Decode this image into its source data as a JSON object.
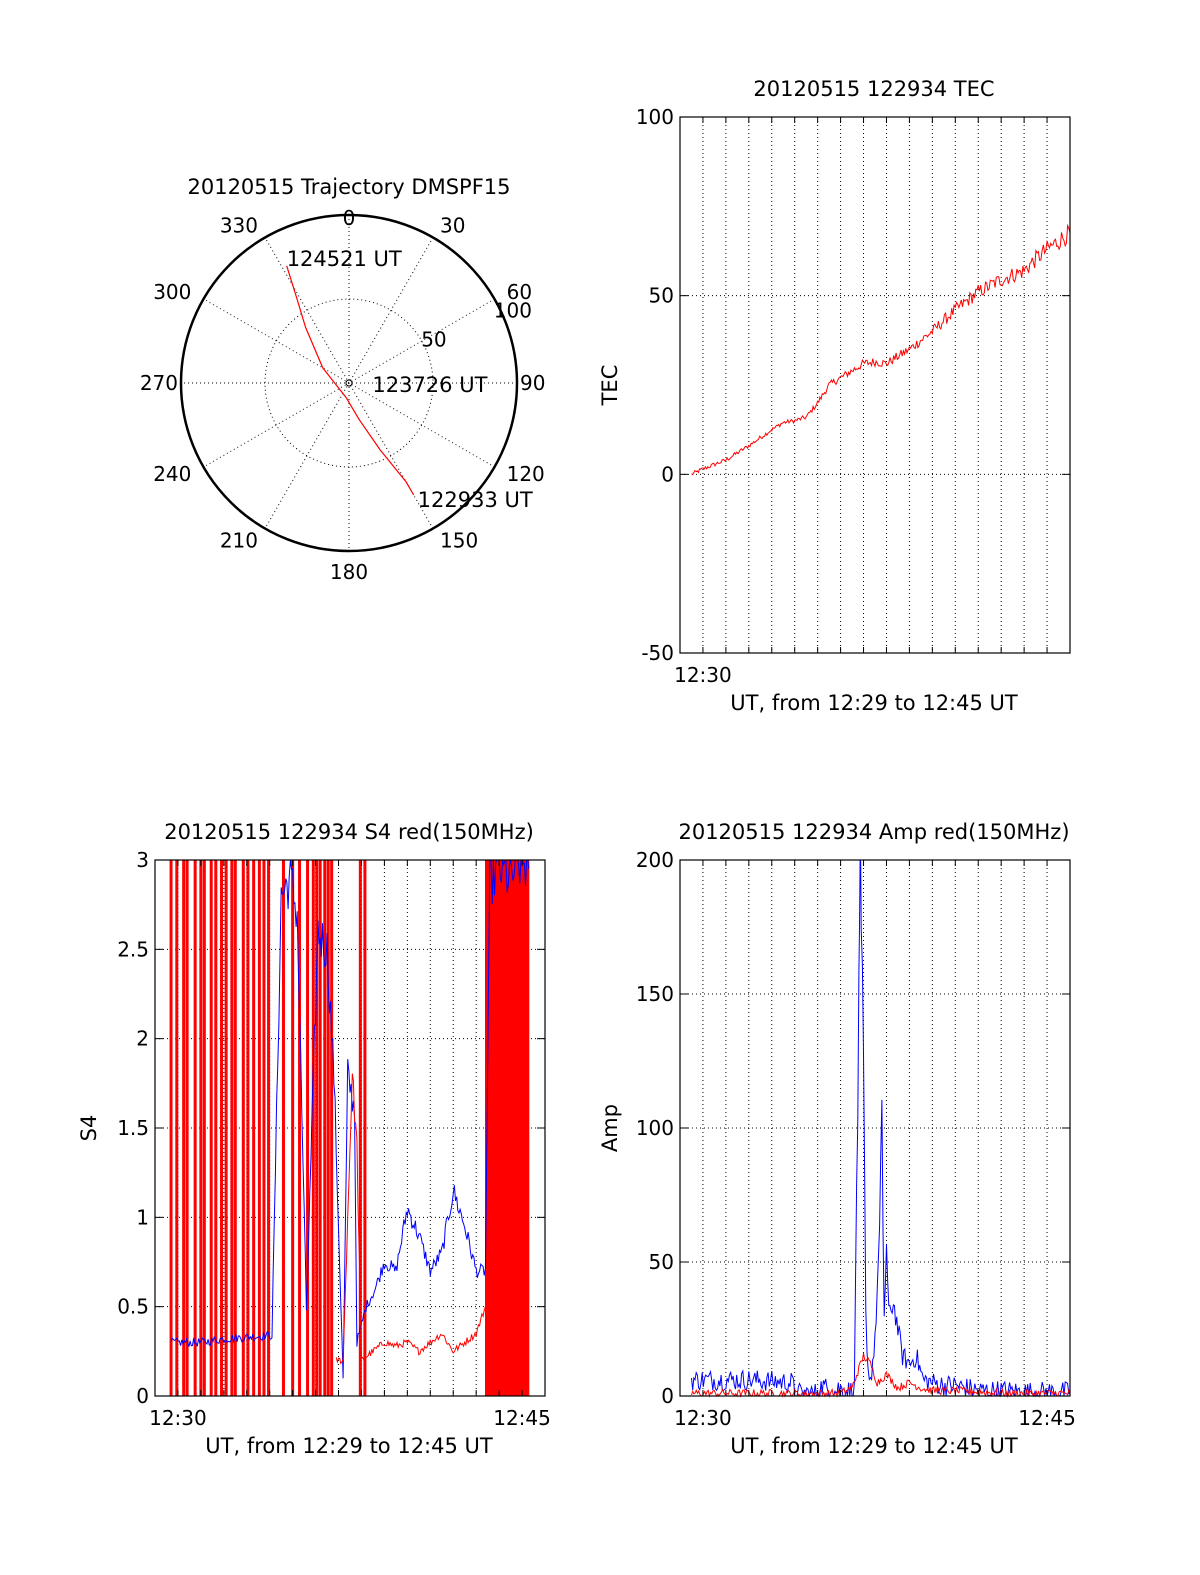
{
  "colors": {
    "red": "#ff0000",
    "blue": "#0000ff",
    "axis": "#000000"
  },
  "chart_data": [
    {
      "type": "polar",
      "title": "20120515 Trajectory DMSPF15",
      "angle_labels": [
        {
          "deg": 0,
          "label": "0"
        },
        {
          "deg": 30,
          "label": "30"
        },
        {
          "deg": 60,
          "label": "60"
        },
        {
          "deg": 90,
          "label": "90"
        },
        {
          "deg": 120,
          "label": "120"
        },
        {
          "deg": 150,
          "label": "150"
        },
        {
          "deg": 180,
          "label": "180"
        },
        {
          "deg": 210,
          "label": "210"
        },
        {
          "deg": 240,
          "label": "240"
        },
        {
          "deg": 270,
          "label": "270"
        },
        {
          "deg": 300,
          "label": "300"
        },
        {
          "deg": 330,
          "label": "330"
        }
      ],
      "radial_labels": [
        {
          "r": 50,
          "label": "50"
        },
        {
          "r": 100,
          "label": "100"
        }
      ],
      "rmax": 100,
      "trajectory": [
        {
          "az": 332,
          "r": 79
        },
        {
          "az": 329,
          "r": 62
        },
        {
          "az": 322,
          "r": 42
        },
        {
          "az": 300,
          "r": 18
        },
        {
          "az": 190,
          "r": 9
        },
        {
          "az": 165,
          "r": 22
        },
        {
          "az": 155,
          "r": 44
        },
        {
          "az": 150,
          "r": 68
        },
        {
          "az": 150,
          "r": 77
        }
      ],
      "annotations": [
        {
          "text": "124521 UT",
          "at_index": 0
        },
        {
          "text": "123726 UT",
          "at_index": 4
        },
        {
          "text": "122933 UT",
          "at_index": 8
        }
      ]
    },
    {
      "type": "line",
      "title": "20120515 122934 TEC",
      "ylabel": "TEC",
      "xlabel": "UT, from 12:29 to 12:45 UT",
      "xlim": [
        0,
        17
      ],
      "ylim": [
        -50,
        100
      ],
      "yticks": [
        {
          "value": 100,
          "label": "100"
        },
        {
          "value": 50,
          "label": "50"
        },
        {
          "value": 0,
          "label": "0"
        },
        {
          "value": -50,
          "label": "-50"
        }
      ],
      "xticks": [
        {
          "value": 1.0,
          "label": "12:30"
        }
      ],
      "grid_x": [
        1.0,
        2.0,
        3.0,
        4.0,
        5.0,
        6.0,
        7.0,
        8.0,
        9.0,
        10.0,
        11.0,
        12.0,
        13.0,
        14.0,
        15.0,
        16.0
      ],
      "grid_y": [
        50,
        0
      ],
      "series": [
        {
          "color": "red",
          "noise": 0.6,
          "x": [
            0.5,
            1.0,
            2.0,
            3.0,
            4.0,
            4.5,
            5.0,
            5.5,
            6.0,
            6.5,
            7.0,
            7.5,
            8.0,
            8.5,
            9.0,
            10.0,
            11.0,
            12.0,
            13.0,
            14.0,
            15.0,
            15.3,
            16.0,
            17.0
          ],
          "y": [
            0.0,
            1.5,
            4.0,
            8.0,
            12.5,
            14.5,
            15.0,
            16.0,
            20.0,
            25.0,
            27.0,
            29.0,
            31.0,
            31.5,
            31.0,
            35.0,
            40.0,
            46.0,
            51.0,
            54.5,
            57.0,
            59.0,
            63.0,
            67.5
          ]
        }
      ]
    },
    {
      "type": "line",
      "title": "20120515 122934 S4 red(150MHz)",
      "ylabel": "S4",
      "xlabel": "UT, from 12:29 to 12:45 UT",
      "xlim": [
        0,
        17
      ],
      "ylim": [
        0,
        3
      ],
      "yticks": [
        {
          "value": 3,
          "label": "3"
        },
        {
          "value": 2.5,
          "label": "2.5"
        },
        {
          "value": 2,
          "label": "2"
        },
        {
          "value": 1.5,
          "label": "1.5"
        },
        {
          "value": 1,
          "label": "1"
        },
        {
          "value": 0.5,
          "label": "0.5"
        },
        {
          "value": 0,
          "label": "0"
        }
      ],
      "xticks": [
        {
          "value": 1.0,
          "label": "12:30"
        },
        {
          "value": 16.0,
          "label": "12:45"
        }
      ],
      "grid_x": [
        1.0,
        2.0,
        3.0,
        4.0,
        5.0,
        6.0,
        7.0,
        8.0,
        9.0,
        10.0,
        11.0,
        12.0,
        13.0,
        14.0,
        15.0,
        16.0
      ],
      "grid_y": [
        2.5,
        2.0,
        1.5,
        1.0,
        0.5
      ],
      "series": [
        {
          "color": "blue",
          "noise": 0.025,
          "x": [
            0.7,
            2.0,
            3.0,
            4.0,
            5.1,
            5.5,
            5.9,
            6.2,
            6.6,
            7.1,
            7.5,
            7.8,
            8.2,
            8.4,
            8.7,
            8.8,
            9.0,
            9.2,
            9.6,
            10.0,
            10.5,
            11.0,
            11.5,
            12.0,
            12.5,
            13.0,
            13.5,
            14.0,
            14.4,
            14.6,
            15.0,
            15.5,
            16.0,
            16.3
          ],
          "y": [
            0.3,
            0.3,
            0.32,
            0.33,
            0.34,
            2.8,
            2.9,
            2.7,
            0.48,
            2.6,
            2.5,
            1.8,
            0.1,
            1.8,
            1.6,
            0.3,
            0.4,
            0.5,
            0.6,
            0.75,
            0.7,
            1.05,
            0.9,
            0.7,
            0.8,
            1.15,
            0.95,
            0.7,
            0.7,
            2.9,
            2.95,
            2.9,
            3.0,
            2.95
          ]
        },
        {
          "color": "red",
          "noise": 0.02,
          "x": [
            7.9,
            8.2,
            8.6,
            8.8,
            9.0,
            9.5,
            10.0,
            10.5,
            11.0,
            11.5,
            12.0,
            12.5,
            13.0,
            13.5,
            14.0,
            14.4
          ],
          "y": [
            0.2,
            0.2,
            1.8,
            1.4,
            0.2,
            0.25,
            0.3,
            0.28,
            0.3,
            0.25,
            0.3,
            0.35,
            0.25,
            0.3,
            0.35,
            0.5
          ]
        }
      ],
      "red_spikes_x": [
        0.7,
        0.95,
        1.25,
        1.4,
        1.75,
        2.0,
        2.15,
        2.45,
        2.65,
        2.9,
        3.1,
        3.35,
        3.5,
        3.85,
        4.05,
        4.3,
        4.55,
        4.75,
        4.95,
        5.6,
        6.0,
        6.3,
        6.65,
        6.9,
        7.05,
        7.2,
        7.4,
        7.55,
        7.7,
        8.95,
        9.15,
        14.45,
        14.55,
        14.65,
        14.75,
        14.85,
        14.95,
        15.05,
        15.15,
        15.25,
        15.35,
        15.45,
        15.55,
        15.65,
        15.75,
        15.85,
        15.95,
        16.05,
        16.15,
        16.25
      ]
    },
    {
      "type": "line",
      "title": "20120515 122934 Amp red(150MHz)",
      "ylabel": "Amp",
      "xlabel": "UT, from 12:29 to 12:45 UT",
      "xlim": [
        0,
        17
      ],
      "ylim": [
        0,
        200
      ],
      "yticks": [
        {
          "value": 200,
          "label": "200"
        },
        {
          "value": 150,
          "label": "150"
        },
        {
          "value": 100,
          "label": "100"
        },
        {
          "value": 50,
          "label": "50"
        },
        {
          "value": 0,
          "label": "0"
        }
      ],
      "xticks": [
        {
          "value": 1.0,
          "label": "12:30"
        },
        {
          "value": 16.0,
          "label": "12:45"
        }
      ],
      "grid_x": [
        1.0,
        2.0,
        3.0,
        4.0,
        5.0,
        6.0,
        7.0,
        8.0,
        9.0,
        10.0,
        11.0,
        12.0,
        13.0,
        14.0,
        15.0,
        16.0
      ],
      "grid_y": [
        150,
        100,
        50
      ],
      "series": [
        {
          "color": "blue",
          "noise": 4,
          "x": [
            0.5,
            2.0,
            3.0,
            4.0,
            4.9,
            5.0,
            6.0,
            6.2,
            6.5,
            6.7,
            6.9,
            7.2,
            7.6,
            7.7,
            7.8,
            7.85,
            7.9,
            8.0,
            8.1,
            8.2,
            8.3,
            8.5,
            8.7,
            8.8,
            8.9,
            9.0,
            9.1,
            9.3,
            9.5,
            9.7,
            10.0,
            10.3,
            10.6,
            11.0,
            11.5,
            12.0,
            12.5,
            13.0,
            14.0,
            15.0,
            16.0,
            17.0
          ],
          "y": [
            6,
            6,
            6,
            5.5,
            5,
            1,
            1,
            4,
            2,
            1,
            3,
            2,
            2,
            80,
            140,
            185,
            170,
            120,
            30,
            10,
            6,
            20,
            60,
            100,
            30,
            55,
            30,
            35,
            25,
            15,
            12,
            15,
            6,
            5,
            4,
            4,
            3,
            2,
            2,
            1.5,
            1.5,
            1.5
          ]
        },
        {
          "color": "red",
          "noise": 1.5,
          "x": [
            0.5,
            4.0,
            7.0,
            7.5,
            8.0,
            8.3,
            8.6,
            9.0,
            9.5,
            10.0,
            10.5,
            11.0,
            12.0,
            14.0,
            17.0
          ],
          "y": [
            1,
            1,
            1,
            3,
            15,
            12,
            5,
            8,
            3,
            5,
            3,
            2,
            2,
            1,
            1
          ]
        }
      ]
    }
  ]
}
